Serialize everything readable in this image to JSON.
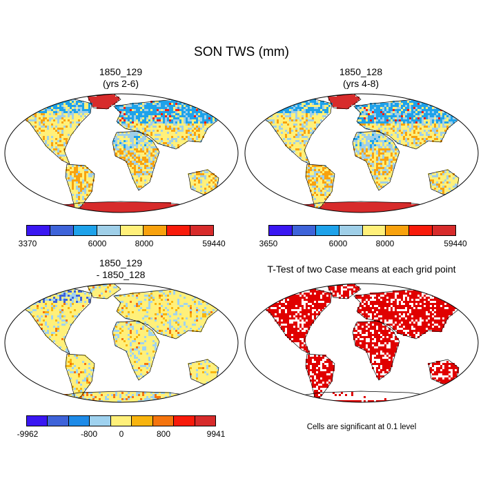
{
  "title": "SON TWS (mm)",
  "panels": [
    {
      "title_line1": "1850_129",
      "title_line2": "(yrs 2-6)",
      "colorbar_ticks": [
        "3370",
        "6000",
        "8000",
        "59440"
      ]
    },
    {
      "title_line1": "1850_128",
      "title_line2": "(yrs 4-8)",
      "colorbar_ticks": [
        "3650",
        "6000",
        "8000",
        "59440"
      ]
    },
    {
      "title_line1": "1850_129",
      "title_line2": "- 1850_128",
      "colorbar_ticks": [
        "-9962",
        "-800",
        "0",
        "800",
        "9941"
      ]
    },
    {
      "title_line1": "T-Test of two Case means at each grid point",
      "title_line2": "",
      "note": "Cells are significant at 0.1 level"
    }
  ],
  "colors": {
    "abs_scale": [
      "#3a17f2",
      "#3e63d9",
      "#1ea2ea",
      "#9fcfe8",
      "#fff07a",
      "#f8a20e",
      "#f81b0b",
      "#d72b2b"
    ],
    "diff_scale": [
      "#3a17f2",
      "#3e63d9",
      "#1e8be8",
      "#9fd2ef",
      "#fff07a",
      "#f8b40e",
      "#f5740e",
      "#f81b0b",
      "#d72b2b"
    ],
    "significance": "#e00000",
    "antarctica_abs": "#d72b2b"
  },
  "chart_data": [
    {
      "type": "heatmap",
      "projection": "robinson-world-map",
      "title": "1850_129 (yrs 2-6)",
      "colorbar_levels": [
        3370,
        6000,
        8000,
        59440
      ]
    },
    {
      "type": "heatmap",
      "projection": "robinson-world-map",
      "title": "1850_128 (yrs 4-8)",
      "colorbar_levels": [
        3650,
        6000,
        8000,
        59440
      ]
    },
    {
      "type": "heatmap",
      "projection": "robinson-world-map",
      "title": "1850_129 - 1850_128",
      "colorbar_levels": [
        -9962,
        -800,
        0,
        800,
        9941
      ]
    },
    {
      "type": "heatmap",
      "projection": "robinson-world-map",
      "title": "T-Test of two Case means at each grid point",
      "annotation": "Cells are significant at 0.1 level"
    }
  ]
}
